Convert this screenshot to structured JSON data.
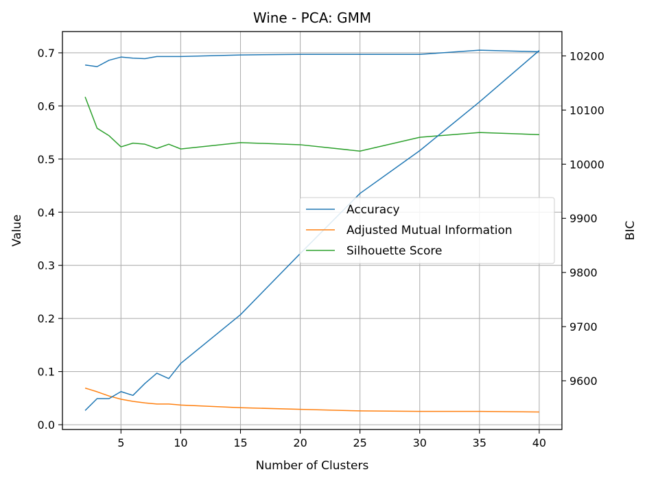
{
  "chart_data": {
    "type": "line",
    "title": "Wine - PCA: GMM",
    "xlabel": "Number of Clusters",
    "ylabel": "Value",
    "y2label": "BIC",
    "x": [
      2,
      3,
      4,
      5,
      6,
      7,
      8,
      9,
      10,
      15,
      20,
      25,
      30,
      35,
      40
    ],
    "xlim": [
      0.1,
      41.9
    ],
    "ylim": [
      -0.009,
      0.74
    ],
    "y2lim": [
      9510,
      10245
    ],
    "xticks": [
      5,
      10,
      15,
      20,
      25,
      30,
      35,
      40
    ],
    "yticks": [
      0.0,
      0.1,
      0.2,
      0.3,
      0.4,
      0.5,
      0.6,
      0.7
    ],
    "ytick_labels": [
      "0.0",
      "0.1",
      "0.2",
      "0.3",
      "0.4",
      "0.5",
      "0.6",
      "0.7"
    ],
    "y2ticks": [
      9600,
      9700,
      9800,
      9900,
      10000,
      10100,
      10200
    ],
    "grid": true,
    "legend_position": "center-right",
    "series": [
      {
        "name": "Accuracy",
        "axis": "left",
        "color": "#1f77b4",
        "values": [
          0.677,
          0.674,
          0.686,
          0.692,
          0.69,
          0.689,
          0.693,
          0.693,
          0.693,
          0.696,
          0.697,
          0.697,
          0.697,
          0.705,
          0.702
        ]
      },
      {
        "name": "Adjusted Mutual Information",
        "axis": "left",
        "color": "#ff7f0e",
        "values": [
          0.069,
          0.062,
          0.054,
          0.048,
          0.044,
          0.041,
          0.039,
          0.039,
          0.037,
          0.032,
          0.029,
          0.026,
          0.025,
          0.025,
          0.024
        ]
      },
      {
        "name": "Silhouette Score",
        "axis": "left",
        "color": "#2ca02c",
        "values": [
          0.617,
          0.558,
          0.544,
          0.523,
          0.53,
          0.528,
          0.52,
          0.528,
          0.519,
          0.531,
          0.527,
          0.515,
          0.541,
          0.55,
          0.546
        ]
      },
      {
        "name": "",
        "axis": "right",
        "color": "#1f77b4",
        "values": [
          9545,
          9567,
          9567,
          9580,
          9573,
          9595,
          9614,
          9604,
          9632,
          9722,
          9835,
          9946,
          10025,
          10115,
          10210
        ]
      }
    ]
  }
}
